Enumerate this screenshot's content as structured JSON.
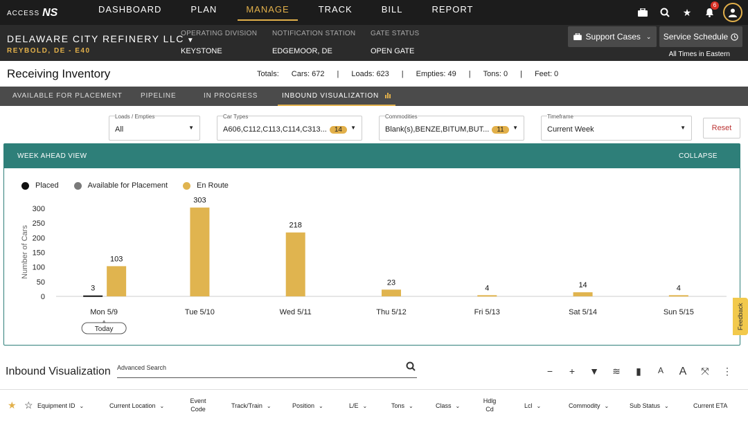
{
  "nav": {
    "logo_text": "ACCESS",
    "logo_mark": "NS",
    "items": [
      "DASHBOARD",
      "PLAN",
      "MANAGE",
      "TRACK",
      "BILL",
      "REPORT"
    ],
    "active": "MANAGE",
    "notification_count": "6",
    "icons": [
      "briefcase-icon",
      "search-icon",
      "star-icon",
      "bell-icon",
      "user-icon"
    ]
  },
  "customer": {
    "name": "DELAWARE CITY REFINERY LLC",
    "location": "REYBOLD, DE - E40",
    "operating_division_label": "OPERATING DIVISION",
    "operating_division": "KEYSTONE",
    "notification_station_label": "NOTIFICATION STATION",
    "notification_station": "EDGEMOOR, DE",
    "gate_status_label": "GATE STATUS",
    "gate_status": "OPEN GATE",
    "support_cases": "Support Cases",
    "service_schedule": "Service Schedule",
    "times_note": "All Times in Eastern"
  },
  "page": {
    "title": "Receiving Inventory",
    "totals_label": "Totals:",
    "cars": "Cars: 672",
    "loads": "Loads: 623",
    "empties": "Empties: 49",
    "tons": "Tons: 0",
    "feet": "Feet: 0",
    "sep": "|"
  },
  "tabs": [
    "AVAILABLE FOR PLACEMENT",
    "PIPELINE",
    "IN PROGRESS",
    "INBOUND VISUALIZATION"
  ],
  "filters": {
    "loads_label": "Loads / Empties",
    "loads_value": "All",
    "car_types_label": "Car Types",
    "car_types_value": "A606,C112,C113,C114,C313...",
    "car_types_count": "14",
    "commodities_label": "Commodities",
    "commodities_value": "Blank(s),BENZE,BITUM,BUT...",
    "commodities_count": "11",
    "timeframe_label": "Timeframe",
    "timeframe_value": "Current Week",
    "reset": "Reset"
  },
  "card": {
    "title": "WEEK AHEAD VIEW",
    "collapse": "COLLAPSE",
    "legend": [
      "Placed",
      "Available for Placement",
      "En Route"
    ],
    "legend_colors": [
      "#111111",
      "#7a7a7a",
      "#e0b44f"
    ],
    "today_label": "Today"
  },
  "chart_data": {
    "type": "bar",
    "categories": [
      "Mon 5/9",
      "Tue 5/10",
      "Wed 5/11",
      "Thu 5/12",
      "Fri 5/13",
      "Sat 5/14",
      "Sun 5/15"
    ],
    "series": [
      {
        "name": "Placed",
        "values": [
          3,
          0,
          0,
          0,
          0,
          0,
          0
        ]
      },
      {
        "name": "En Route",
        "values": [
          103,
          303,
          218,
          23,
          4,
          14,
          4
        ]
      }
    ],
    "ylabel": "Number of Cars",
    "yticks": [
      0,
      50,
      100,
      150,
      200,
      250,
      300
    ],
    "ylim": [
      0,
      300
    ],
    "legend_position": "top-left"
  },
  "feedback": "Feedback",
  "bottom": {
    "title": "Inbound Visualization",
    "search_label": "Advanced Search",
    "tool_icons": [
      "minus-icon",
      "plus-icon",
      "filter-icon",
      "layers-icon",
      "book-icon",
      "font-small-icon",
      "font-large-icon",
      "expand-icon",
      "more-icon"
    ],
    "columns": [
      "Equipment ID",
      "Current Location",
      "Event Code",
      "Track/Train",
      "Position",
      "L/E",
      "Tons",
      "Class",
      "Hdlg Cd",
      "Lcl",
      "Commodity",
      "Sub Status",
      "Current ETA"
    ]
  }
}
